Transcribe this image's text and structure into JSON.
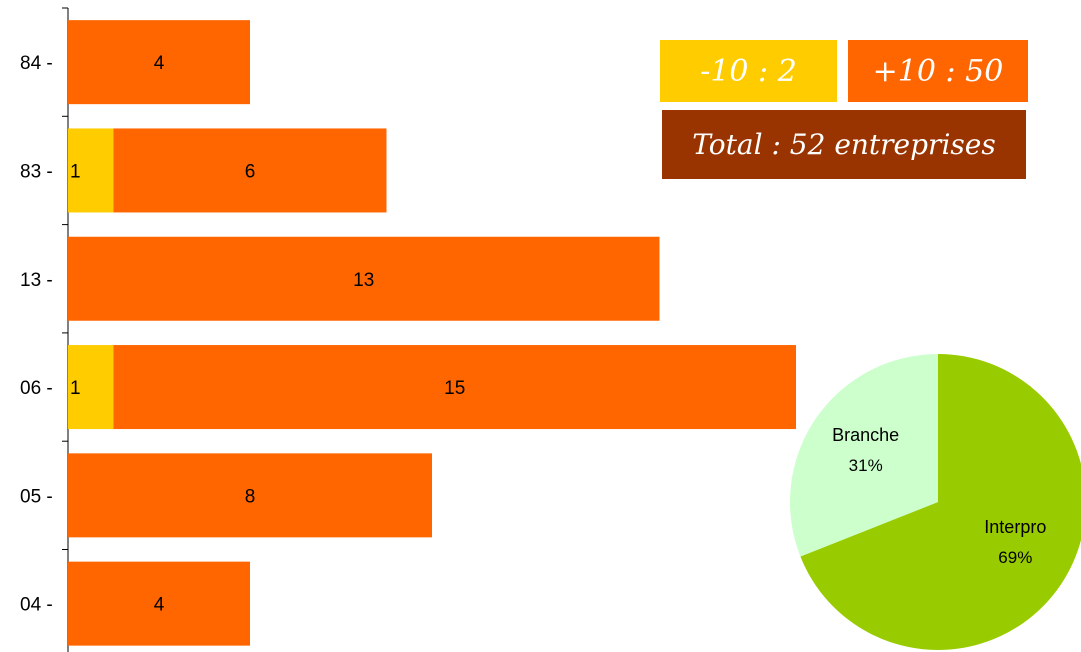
{
  "chart_data": [
    {
      "type": "bar",
      "orientation": "horizontal",
      "stacked": true,
      "categories": [
        "84",
        "83",
        "13",
        "06",
        "05",
        "04"
      ],
      "series": [
        {
          "name": "-10",
          "color": "#FFCC00",
          "values": [
            0,
            1,
            0,
            1,
            0,
            0
          ]
        },
        {
          "name": "+10",
          "color": "#FF6600",
          "values": [
            4,
            6,
            13,
            15,
            8,
            4
          ]
        }
      ],
      "data_labels": true,
      "xlim": [
        0,
        20
      ],
      "grid": false
    },
    {
      "type": "pie",
      "slices": [
        {
          "label": "Interpro",
          "value": 69,
          "display": "69%",
          "color": "#99CC00"
        },
        {
          "label": "Branche",
          "value": 31,
          "display": "31%",
          "color": "#CCFFCC"
        }
      ]
    }
  ],
  "legend": {
    "small": {
      "text": "-10 :  2",
      "color": "#FFCC00"
    },
    "large": {
      "text": "+10 :  50",
      "color": "#FF6600"
    },
    "total": {
      "text": "Total : 52 entreprises",
      "color": "#993300"
    }
  }
}
